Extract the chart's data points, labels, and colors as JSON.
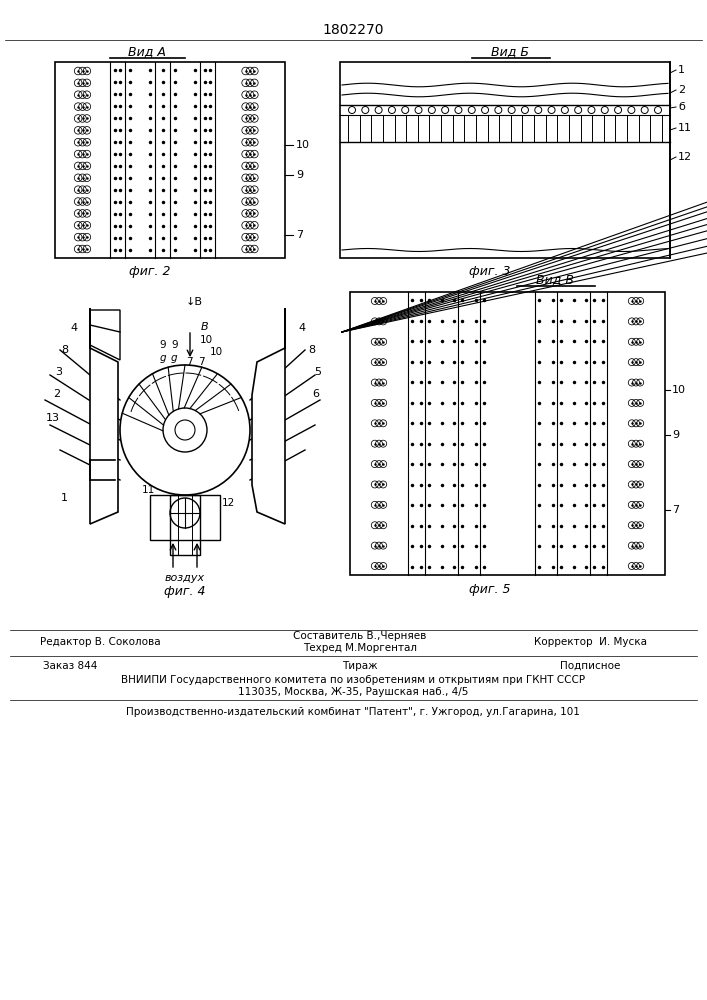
{
  "title_number": "1802270",
  "background_color": "#ffffff",
  "vid_a_label": "Вид А",
  "vid_b_label": "Вид Б",
  "vid_v_label": "Вид В",
  "fig2_label": "фиг. 2",
  "fig3_label": "фиг. 3",
  "fig4_label": "фиг. 4",
  "fig5_label": "фиг. 5"
}
